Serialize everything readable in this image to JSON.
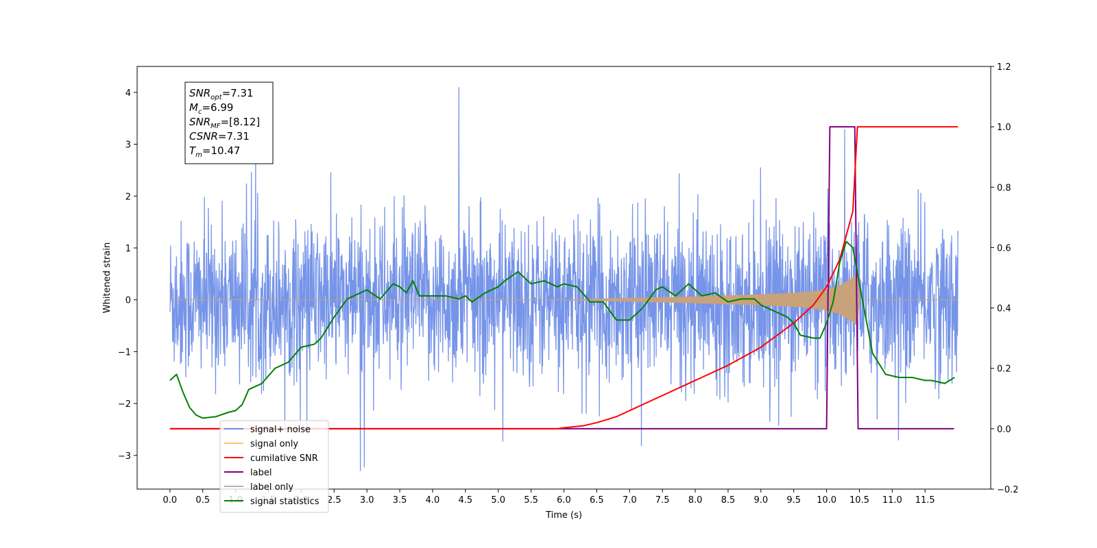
{
  "chart_data": {
    "type": "line",
    "xlabel": "Time (s)",
    "ylabel": "Whitened strain",
    "xlim": [
      -0.5,
      12.5
    ],
    "ylim": [
      -3.65,
      4.5
    ],
    "y2lim": [
      -0.2,
      1.2
    ],
    "x_ticks": [
      "0.0",
      "0.5",
      "1.0",
      "1.5",
      "2.0",
      "2.5",
      "3.0",
      "3.5",
      "4.0",
      "4.5",
      "5.0",
      "5.5",
      "6.0",
      "6.5",
      "7.0",
      "7.5",
      "8.0",
      "8.5",
      "9.0",
      "9.5",
      "10.0",
      "10.5",
      "11.0",
      "11.5"
    ],
    "y_ticks": [
      "−3",
      "−2",
      "−1",
      "0",
      "1",
      "2",
      "3",
      "4"
    ],
    "y2_ticks": [
      "−0.2",
      "0.0",
      "0.2",
      "0.4",
      "0.6",
      "0.8",
      "1.0",
      "1.2"
    ],
    "info_box": [
      {
        "var": "SNR",
        "sub": "opt",
        "value": "=7.31"
      },
      {
        "var": "M",
        "sub": "c",
        "value": "=6.99"
      },
      {
        "var": "SNR",
        "sub": "MF",
        "value": "=[8.12]"
      },
      {
        "var": "CSNR",
        "sub": "",
        "value": "=7.31"
      },
      {
        "var": "T",
        "sub": "m",
        "value": "=10.47"
      }
    ],
    "legend": {
      "placement": "lower-left",
      "entries": [
        {
          "label": "signal+ noise",
          "color": "#6a8be6"
        },
        {
          "label": "signal only",
          "color": "#ffc36b"
        },
        {
          "label": "cumilative SNR",
          "color": "#ff0000"
        },
        {
          "label": "label",
          "color": "#800080"
        },
        {
          "label": "label only",
          "color": "#b0b0b0"
        },
        {
          "label": "signal statistics",
          "color": "#008000"
        }
      ]
    },
    "series": [
      {
        "name": "signal+ noise",
        "axis": "left",
        "color": "#6a8be6",
        "style": "noise",
        "x_range": [
          0.0,
          12.0
        ],
        "typical_range": [
          -1.5,
          1.6
        ],
        "max": 4.1,
        "min": -3.3
      },
      {
        "name": "signal only",
        "axis": "left",
        "color": "#c8a27a",
        "style": "chirp_envelope",
        "x": [
          0.0,
          6.0,
          7.0,
          8.0,
          8.5,
          9.0,
          9.5,
          9.8,
          10.0,
          10.2,
          10.4,
          10.47,
          10.5,
          12.0
        ],
        "envelope": [
          0.0,
          0.0,
          0.03,
          0.06,
          0.08,
          0.1,
          0.13,
          0.16,
          0.2,
          0.27,
          0.42,
          0.5,
          0.0,
          0.0
        ]
      },
      {
        "name": "cumilative SNR",
        "axis": "right",
        "color": "#ff0000",
        "x": [
          0.0,
          5.5,
          5.9,
          6.0,
          6.3,
          6.5,
          6.8,
          7.0,
          7.5,
          8.0,
          8.5,
          9.0,
          9.5,
          9.8,
          10.0,
          10.2,
          10.4,
          10.47,
          12.0
        ],
        "y": [
          0.0,
          0.0,
          0.0,
          0.003,
          0.01,
          0.02,
          0.04,
          0.06,
          0.11,
          0.16,
          0.21,
          0.27,
          0.35,
          0.41,
          0.47,
          0.56,
          0.72,
          1.0,
          1.0
        ]
      },
      {
        "name": "label",
        "axis": "right",
        "color": "#800080",
        "x": [
          0.0,
          10.0,
          10.05,
          10.43,
          10.48,
          11.94
        ],
        "y": [
          0.0,
          0.0,
          1.0,
          1.0,
          0.0,
          0.0
        ]
      },
      {
        "name": "signal statistics",
        "axis": "right",
        "color": "#008000",
        "x": [
          0.0,
          0.1,
          0.2,
          0.3,
          0.4,
          0.5,
          0.7,
          0.9,
          1.0,
          1.1,
          1.2,
          1.4,
          1.6,
          1.8,
          2.0,
          2.2,
          2.3,
          2.5,
          2.6,
          2.7,
          2.8,
          3.0,
          3.2,
          3.4,
          3.5,
          3.6,
          3.7,
          3.8,
          4.0,
          4.2,
          4.4,
          4.5,
          4.6,
          4.8,
          5.0,
          5.1,
          5.3,
          5.5,
          5.7,
          5.9,
          6.0,
          6.2,
          6.4,
          6.6,
          6.8,
          7.0,
          7.2,
          7.4,
          7.5,
          7.7,
          7.9,
          8.1,
          8.3,
          8.5,
          8.7,
          8.9,
          9.0,
          9.2,
          9.4,
          9.5,
          9.6,
          9.8,
          9.9,
          10.0,
          10.1,
          10.2,
          10.3,
          10.4,
          10.5,
          10.7,
          10.9,
          11.1,
          11.3,
          11.5,
          11.6,
          11.8,
          11.95
        ],
        "y": [
          0.16,
          0.18,
          0.12,
          0.07,
          0.045,
          0.035,
          0.04,
          0.055,
          0.06,
          0.08,
          0.13,
          0.15,
          0.2,
          0.22,
          0.27,
          0.28,
          0.3,
          0.37,
          0.4,
          0.43,
          0.44,
          0.46,
          0.43,
          0.48,
          0.47,
          0.45,
          0.49,
          0.44,
          0.44,
          0.44,
          0.43,
          0.44,
          0.42,
          0.45,
          0.47,
          0.49,
          0.52,
          0.48,
          0.49,
          0.47,
          0.48,
          0.47,
          0.42,
          0.42,
          0.36,
          0.36,
          0.4,
          0.46,
          0.47,
          0.44,
          0.48,
          0.44,
          0.45,
          0.42,
          0.43,
          0.43,
          0.41,
          0.39,
          0.37,
          0.35,
          0.31,
          0.3,
          0.3,
          0.35,
          0.42,
          0.55,
          0.62,
          0.6,
          0.48,
          0.25,
          0.18,
          0.17,
          0.17,
          0.16,
          0.16,
          0.15,
          0.17
        ]
      }
    ]
  }
}
